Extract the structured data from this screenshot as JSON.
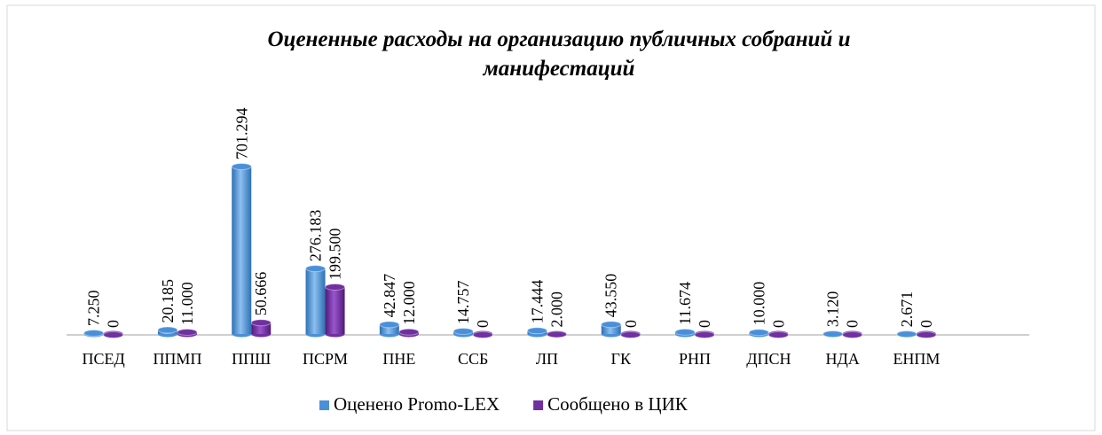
{
  "chart_data": {
    "type": "bar",
    "title": "Оцененные расходы на организацию публичных собраний и манифестаций",
    "categories": [
      "ПСЕД",
      "ППМП",
      "ППШ",
      "ПСРМ",
      "ПНЕ",
      "ССБ",
      "ЛП",
      "ГК",
      "РНП",
      "ДПСН",
      "НДА",
      "ЕНПМ"
    ],
    "series": [
      {
        "name": "Оценено Promo-LEX",
        "color": "#4a90d9",
        "values": [
          7250,
          20185,
          701294,
          276183,
          42847,
          14757,
          17444,
          43550,
          11674,
          10000,
          3120,
          2671
        ],
        "value_labels": [
          "7.250",
          "20.185",
          "701.294",
          "276.183",
          "42.847",
          "14.757",
          "17.444",
          "43.550",
          "11.674",
          "10.000",
          "3.120",
          "2.671"
        ]
      },
      {
        "name": "Сообщено в ЦИК",
        "color": "#7030a0",
        "values": [
          0,
          11000,
          50666,
          199500,
          12000,
          0,
          2000,
          0,
          0,
          0,
          0,
          0
        ],
        "value_labels": [
          "0",
          "11.000",
          "50.666",
          "199.500",
          "12.000",
          "0",
          "2.000",
          "0",
          "0",
          "0",
          "0",
          "0"
        ]
      }
    ],
    "legend": "bottom"
  }
}
